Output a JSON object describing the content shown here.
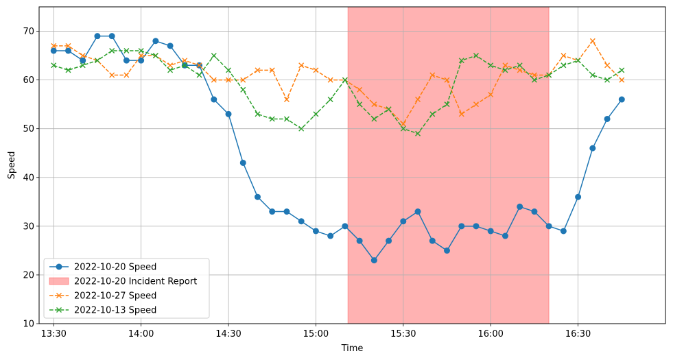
{
  "chart_data": {
    "type": "line",
    "xlabel": "Time",
    "ylabel": "Speed",
    "ylim": [
      10,
      75
    ],
    "xlim": [
      "13:25",
      "17:00"
    ],
    "grid": true,
    "legend_position": "lower-left",
    "x_ticks": [
      "13:30",
      "14:00",
      "14:30",
      "15:00",
      "15:30",
      "16:00",
      "16:30"
    ],
    "y_ticks": [
      10,
      20,
      30,
      40,
      50,
      60,
      70
    ],
    "x": [
      "13:30",
      "13:35",
      "13:40",
      "13:45",
      "13:50",
      "13:55",
      "14:00",
      "14:05",
      "14:10",
      "14:15",
      "14:20",
      "14:25",
      "14:30",
      "14:35",
      "14:40",
      "14:45",
      "14:50",
      "14:55",
      "15:00",
      "15:05",
      "15:10",
      "15:15",
      "15:20",
      "15:25",
      "15:30",
      "15:35",
      "15:40",
      "15:45",
      "15:50",
      "15:55",
      "16:00",
      "16:05",
      "16:10",
      "16:15",
      "16:20",
      "16:25",
      "16:30",
      "16:35",
      "16:40",
      "16:45"
    ],
    "incident": {
      "label": "2022-10-20 Incident Report",
      "start": "15:11",
      "end": "16:20",
      "color": "#ff0000"
    },
    "series": [
      {
        "name": "2022-10-20 Speed",
        "color": "#1f77b4",
        "style": "solid",
        "marker": "circle",
        "values": [
          66,
          66,
          64,
          69,
          69,
          64,
          64,
          68,
          67,
          63,
          63,
          56,
          53,
          43,
          36,
          33,
          33,
          31,
          29,
          28,
          30,
          27,
          23,
          27,
          31,
          33,
          27,
          25,
          30,
          30,
          29,
          28,
          34,
          33,
          30,
          29,
          36,
          46,
          52,
          56
        ]
      },
      {
        "name": "2022-10-27 Speed",
        "color": "#ff7f0e",
        "style": "dashed",
        "marker": "x",
        "values": [
          67,
          67,
          65,
          64,
          61,
          61,
          65,
          65,
          63,
          64,
          63,
          60,
          60,
          60,
          62,
          62,
          56,
          63,
          62,
          60,
          60,
          58,
          55,
          54,
          51,
          56,
          61,
          60,
          53,
          55,
          57,
          63,
          62,
          61,
          61,
          65,
          64,
          68,
          63,
          60
        ]
      },
      {
        "name": "2022-10-13 Speed",
        "color": "#2ca02c",
        "style": "dashed",
        "marker": "x",
        "values": [
          63,
          62,
          63,
          64,
          66,
          66,
          66,
          65,
          62,
          63,
          61,
          65,
          62,
          58,
          53,
          52,
          52,
          50,
          53,
          56,
          60,
          55,
          52,
          54,
          50,
          49,
          53,
          55,
          64,
          65,
          63,
          62,
          63,
          60,
          61,
          63,
          64,
          61,
          60,
          62
        ]
      }
    ]
  }
}
